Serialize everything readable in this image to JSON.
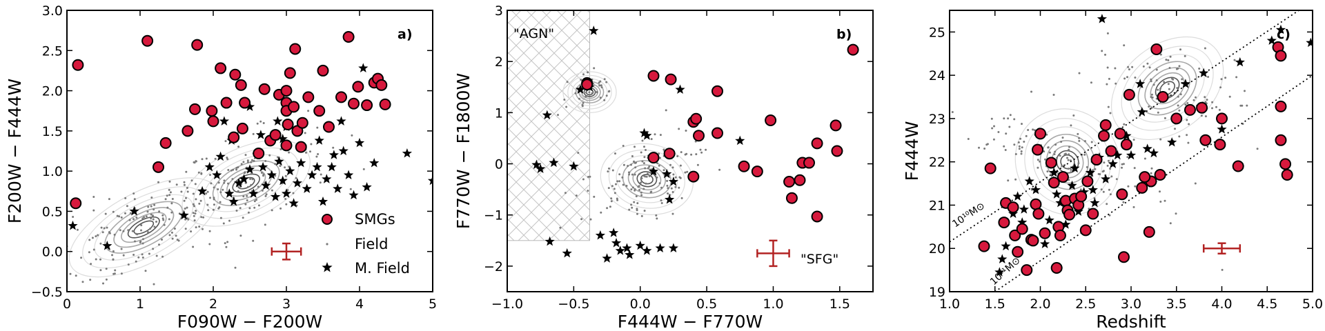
{
  "colors": {
    "smg_fill": "#d7193d",
    "smg_edge": "#000000",
    "field": "#7a7a7a",
    "mfield": "#000000",
    "errbar": "#b22222"
  },
  "chart_data": [
    {
      "type": "scatter",
      "panel_label": "a)",
      "xlabel": "F090W − F200W",
      "ylabel": "F200W − F444W",
      "xlim": [
        0,
        5
      ],
      "ylim": [
        -0.5,
        3.0
      ],
      "xticks": [
        0,
        1,
        2,
        3,
        4,
        5
      ],
      "yticks": [
        -0.5,
        0.0,
        0.5,
        1.0,
        1.5,
        2.0,
        2.5,
        3.0
      ],
      "legend": [
        "SMGs",
        "Field",
        "M. Field"
      ],
      "legend_position": "lower-right",
      "error_bar": {
        "x": 3.0,
        "y": 0.0,
        "xerr": 0.2,
        "yerr": 0.1
      },
      "smgs": [
        [
          0.15,
          2.32
        ],
        [
          0.12,
          0.6
        ],
        [
          1.1,
          2.62
        ],
        [
          1.35,
          1.35
        ],
        [
          1.25,
          1.05
        ],
        [
          1.78,
          2.57
        ],
        [
          1.65,
          1.5
        ],
        [
          1.75,
          1.77
        ],
        [
          1.98,
          1.75
        ],
        [
          2.0,
          1.62
        ],
        [
          2.1,
          2.28
        ],
        [
          2.18,
          1.85
        ],
        [
          2.3,
          2.2
        ],
        [
          2.38,
          2.07
        ],
        [
          2.43,
          1.85
        ],
        [
          2.4,
          1.53
        ],
        [
          2.28,
          1.42
        ],
        [
          2.7,
          2.02
        ],
        [
          2.78,
          1.38
        ],
        [
          2.85,
          1.45
        ],
        [
          2.9,
          1.95
        ],
        [
          3.0,
          2.0
        ],
        [
          3.0,
          1.85
        ],
        [
          3.05,
          2.22
        ],
        [
          3.12,
          2.52
        ],
        [
          3.0,
          1.75
        ],
        [
          3.02,
          1.58
        ],
        [
          3.1,
          1.8
        ],
        [
          3.15,
          1.5
        ],
        [
          3.22,
          1.6
        ],
        [
          3.3,
          1.92
        ],
        [
          3.45,
          1.75
        ],
        [
          3.5,
          2.25
        ],
        [
          3.58,
          1.55
        ],
        [
          3.75,
          1.92
        ],
        [
          3.85,
          2.67
        ],
        [
          3.92,
          1.84
        ],
        [
          3.98,
          2.05
        ],
        [
          4.1,
          1.82
        ],
        [
          4.2,
          2.1
        ],
        [
          4.25,
          2.15
        ],
        [
          4.3,
          2.07
        ],
        [
          4.35,
          1.83
        ],
        [
          3.0,
          1.32
        ],
        [
          3.2,
          1.3
        ],
        [
          2.62,
          1.22
        ]
      ],
      "mfield": [
        [
          0.08,
          0.32
        ],
        [
          0.55,
          0.07
        ],
        [
          0.92,
          0.5
        ],
        [
          1.6,
          0.45
        ],
        [
          1.85,
          0.75
        ],
        [
          1.95,
          1.05
        ],
        [
          2.05,
          0.95
        ],
        [
          2.1,
          1.18
        ],
        [
          2.22,
          0.72
        ],
        [
          2.28,
          0.62
        ],
        [
          2.35,
          0.85
        ],
        [
          2.42,
          0.9
        ],
        [
          2.5,
          1.02
        ],
        [
          2.55,
          0.72
        ],
        [
          2.6,
          1.2
        ],
        [
          2.68,
          1.05
        ],
        [
          2.72,
          0.82
        ],
        [
          2.8,
          0.95
        ],
        [
          2.85,
          0.68
        ],
        [
          2.9,
          1.12
        ],
        [
          2.95,
          0.88
        ],
        [
          3.0,
          0.72
        ],
        [
          3.05,
          1.0
        ],
        [
          3.1,
          0.6
        ],
        [
          3.15,
          0.85
        ],
        [
          3.2,
          1.1
        ],
        [
          3.28,
          0.78
        ],
        [
          3.35,
          0.95
        ],
        [
          3.42,
          1.05
        ],
        [
          3.5,
          0.62
        ],
        [
          3.55,
          0.9
        ],
        [
          3.62,
          1.05
        ],
        [
          3.7,
          0.78
        ],
        [
          3.78,
          1.25
        ],
        [
          3.85,
          0.95
        ],
        [
          3.92,
          0.7
        ],
        [
          4.0,
          1.35
        ],
        [
          4.1,
          0.8
        ],
        [
          4.2,
          1.1
        ],
        [
          4.65,
          1.22
        ],
        [
          5.0,
          0.88
        ],
        [
          2.15,
          1.62
        ],
        [
          2.5,
          1.8
        ],
        [
          2.88,
          1.62
        ],
        [
          3.0,
          1.55
        ],
        [
          3.45,
          1.38
        ],
        [
          3.65,
          1.2
        ],
        [
          4.05,
          2.28
        ],
        [
          3.75,
          1.62
        ],
        [
          2.25,
          1.38
        ],
        [
          2.65,
          1.45
        ],
        [
          2.95,
          1.4
        ]
      ]
    },
    {
      "type": "scatter",
      "panel_label": "b)",
      "xlabel": "F444W − F770W",
      "ylabel": "F770W − F1800W",
      "xlim": [
        -1.0,
        1.75
      ],
      "ylim": [
        -2.5,
        3.0
      ],
      "xticks": [
        -1.0,
        -0.5,
        0.0,
        0.5,
        1.0,
        1.5
      ],
      "yticks": [
        -2,
        -1,
        0,
        1,
        2,
        3
      ],
      "region_labels": [
        "\"AGN\"",
        "\"SFG\""
      ],
      "agn_region": {
        "xmax": -0.38,
        "ymin": -1.5,
        "ymax": 3.0
      },
      "error_bar": {
        "x": 1.0,
        "y": -1.75,
        "xerr": 0.12,
        "yerr": 0.25
      },
      "smgs": [
        [
          -0.4,
          1.58
        ],
        [
          -0.4,
          1.55
        ],
        [
          0.1,
          1.72
        ],
        [
          0.23,
          1.65
        ],
        [
          0.58,
          1.42
        ],
        [
          1.6,
          2.23
        ],
        [
          0.98,
          0.85
        ],
        [
          0.4,
          0.82
        ],
        [
          0.42,
          0.88
        ],
        [
          0.44,
          0.55
        ],
        [
          0.58,
          0.6
        ],
        [
          0.78,
          -0.05
        ],
        [
          0.88,
          -0.15
        ],
        [
          0.1,
          0.12
        ],
        [
          0.22,
          0.2
        ],
        [
          0.4,
          -0.25
        ],
        [
          1.12,
          -0.35
        ],
        [
          1.2,
          -0.32
        ],
        [
          1.14,
          -0.67
        ],
        [
          1.22,
          0.02
        ],
        [
          1.27,
          0.02
        ],
        [
          1.33,
          0.4
        ],
        [
          1.33,
          -1.03
        ],
        [
          1.47,
          0.75
        ],
        [
          1.48,
          0.25
        ]
      ],
      "mfield": [
        [
          -0.35,
          2.6
        ],
        [
          -0.38,
          1.5
        ],
        [
          -0.45,
          1.45
        ],
        [
          -0.7,
          0.95
        ],
        [
          -0.78,
          -0.02
        ],
        [
          -0.65,
          0.02
        ],
        [
          -0.75,
          -0.1
        ],
        [
          -0.5,
          -0.05
        ],
        [
          -0.68,
          -1.52
        ],
        [
          -0.55,
          -1.75
        ],
        [
          -0.3,
          -1.4
        ],
        [
          -0.2,
          -1.35
        ],
        [
          -0.18,
          -1.55
        ],
        [
          -0.25,
          -1.85
        ],
        [
          -0.15,
          -1.7
        ],
        [
          -0.1,
          -1.65
        ],
        [
          -0.08,
          -1.78
        ],
        [
          0.0,
          -1.6
        ],
        [
          0.05,
          -1.7
        ],
        [
          0.15,
          -1.65
        ],
        [
          0.25,
          -1.65
        ],
        [
          0.1,
          -0.15
        ],
        [
          0.3,
          1.45
        ],
        [
          0.22,
          -0.7
        ],
        [
          0.75,
          0.45
        ],
        [
          0.05,
          0.55
        ],
        [
          0.03,
          0.6
        ],
        [
          0.2,
          -0.2
        ],
        [
          0.25,
          -0.35
        ]
      ]
    },
    {
      "type": "scatter",
      "panel_label": "c)",
      "xlabel": "Redshift",
      "ylabel": "F444W",
      "xlim": [
        1.0,
        5.0
      ],
      "ylim": [
        19,
        25.5
      ],
      "xticks": [
        1.0,
        1.5,
        2.0,
        2.5,
        3.0,
        3.5,
        4.0,
        4.5,
        5.0
      ],
      "yticks": [
        19,
        20,
        21,
        22,
        23,
        24,
        25
      ],
      "mass_line_labels": [
        "10¹⁰M⊙",
        "10¹¹M⊙"
      ],
      "mass_lines": [
        {
          "x": [
            1.0,
            4.85
          ],
          "y": [
            20.15,
            25.5
          ]
        },
        {
          "x": [
            1.5,
            5.0
          ],
          "y": [
            19.0,
            24.0
          ]
        }
      ],
      "error_bar": {
        "x": 4.0,
        "y": 20.0,
        "xerr": 0.2,
        "yerr": 0.12
      },
      "smgs": [
        [
          1.38,
          20.05
        ],
        [
          1.45,
          21.85
        ],
        [
          1.6,
          20.6
        ],
        [
          1.62,
          21.05
        ],
        [
          1.7,
          20.95
        ],
        [
          1.72,
          20.3
        ],
        [
          1.75,
          19.92
        ],
        [
          1.8,
          20.45
        ],
        [
          1.85,
          19.5
        ],
        [
          1.9,
          20.2
        ],
        [
          1.92,
          20.18
        ],
        [
          1.95,
          21.02
        ],
        [
          1.98,
          20.8
        ],
        [
          1.97,
          22.28
        ],
        [
          2.0,
          22.65
        ],
        [
          2.05,
          20.35
        ],
        [
          2.12,
          21.98
        ],
        [
          2.15,
          21.52
        ],
        [
          2.18,
          19.55
        ],
        [
          2.2,
          20.5
        ],
        [
          2.22,
          20.3
        ],
        [
          2.25,
          21.65
        ],
        [
          2.28,
          21.1
        ],
        [
          2.3,
          20.88
        ],
        [
          2.32,
          20.78
        ],
        [
          2.38,
          21.15
        ],
        [
          2.42,
          21.0
        ],
        [
          2.45,
          21.2
        ],
        [
          2.5,
          20.42
        ],
        [
          2.52,
          21.55
        ],
        [
          2.58,
          20.8
        ],
        [
          2.62,
          22.05
        ],
        [
          2.7,
          22.6
        ],
        [
          2.72,
          22.85
        ],
        [
          2.78,
          22.25
        ],
        [
          2.88,
          22.65
        ],
        [
          2.9,
          21.25
        ],
        [
          2.92,
          19.8
        ],
        [
          2.95,
          22.4
        ],
        [
          2.98,
          23.55
        ],
        [
          3.12,
          21.4
        ],
        [
          3.22,
          21.55
        ],
        [
          3.2,
          20.38
        ],
        [
          3.28,
          24.6
        ],
        [
          3.32,
          21.7
        ],
        [
          3.35,
          23.5
        ],
        [
          3.5,
          23.0
        ],
        [
          3.65,
          23.2
        ],
        [
          3.78,
          23.25
        ],
        [
          3.82,
          22.5
        ],
        [
          4.0,
          23.0
        ],
        [
          3.98,
          22.4
        ],
        [
          4.18,
          21.9
        ],
        [
          4.62,
          24.65
        ],
        [
          4.65,
          24.45
        ],
        [
          4.65,
          23.28
        ],
        [
          4.65,
          22.5
        ],
        [
          4.7,
          21.95
        ],
        [
          4.72,
          21.7
        ],
        [
          3.15,
          21.65
        ]
      ],
      "mfield": [
        [
          1.55,
          19.45
        ],
        [
          1.58,
          19.75
        ],
        [
          1.62,
          20.05
        ],
        [
          1.7,
          20.8
        ],
        [
          1.75,
          21.2
        ],
        [
          1.8,
          20.6
        ],
        [
          1.82,
          20.9
        ],
        [
          1.88,
          21.55
        ],
        [
          1.95,
          21.35
        ],
        [
          2.05,
          20.1
        ],
        [
          2.1,
          20.65
        ],
        [
          2.15,
          21.75
        ],
        [
          2.18,
          21.25
        ],
        [
          2.22,
          21.05
        ],
        [
          2.28,
          20.55
        ],
        [
          2.35,
          21.45
        ],
        [
          2.38,
          21.85
        ],
        [
          2.42,
          20.85
        ],
        [
          2.48,
          21.3
        ],
        [
          2.55,
          21.75
        ],
        [
          2.58,
          21.35
        ],
        [
          2.6,
          21.05
        ],
        [
          2.65,
          22.1
        ],
        [
          2.68,
          25.3
        ],
        [
          2.72,
          21.6
        ],
        [
          2.8,
          21.95
        ],
        [
          2.85,
          22.15
        ],
        [
          2.95,
          22.6
        ],
        [
          3.0,
          22.15
        ],
        [
          3.12,
          23.15
        ],
        [
          3.18,
          22.3
        ],
        [
          3.25,
          22.2
        ],
        [
          3.45,
          22.45
        ],
        [
          3.6,
          23.8
        ],
        [
          3.8,
          24.05
        ],
        [
          4.0,
          22.75
        ],
        [
          4.2,
          24.3
        ],
        [
          4.55,
          24.8
        ],
        [
          4.98,
          24.75
        ],
        [
          4.65,
          25.05
        ],
        [
          3.1,
          23.8
        ]
      ]
    }
  ]
}
